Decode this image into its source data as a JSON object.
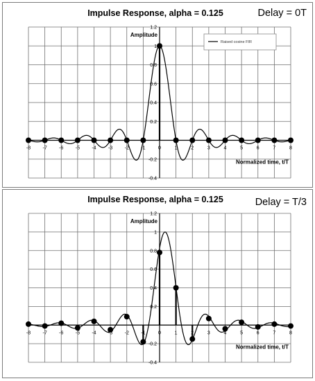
{
  "chart_data": [
    {
      "type": "line",
      "title": "Impulse Response, alpha = 0.125",
      "annotation": "Delay = 0T",
      "xlabel": "Normalized time, t/T",
      "ylabel": "Amplitude",
      "xlim": [
        -8,
        8
      ],
      "ylim": [
        -0.4,
        1.2
      ],
      "x_ticks": [
        -8,
        -7,
        -6,
        -5,
        -4,
        -3,
        -2,
        -1,
        0,
        1,
        2,
        3,
        4,
        5,
        6,
        7,
        8
      ],
      "y_ticks": [
        -0.4,
        -0.2,
        0,
        0.2,
        0.4,
        0.6,
        0.8,
        1,
        1.2
      ],
      "grid": true,
      "legend": {
        "position": "top-right",
        "entries": [
          "Raised cosine FIR"
        ]
      },
      "alpha": 0.125,
      "delay": 0,
      "series": [
        {
          "name": "Raised cosine FIR",
          "kind": "continuous-curve",
          "x_range": [
            -8,
            8
          ]
        }
      ],
      "samples": {
        "x": [
          -8,
          -7,
          -6,
          -5,
          -4,
          -3,
          -2,
          -1,
          0,
          1,
          2,
          3,
          4,
          5,
          6,
          7,
          8
        ],
        "y": [
          0,
          0,
          0,
          0,
          0,
          0,
          0,
          0,
          1,
          0,
          0,
          0,
          0,
          0,
          0,
          0,
          0
        ]
      },
      "stems": [
        0
      ]
    },
    {
      "type": "line",
      "title": "Impulse Response, alpha = 0.125",
      "annotation": "Delay = T/3",
      "xlabel": "Normalized time, t/T",
      "ylabel": "Amplitude",
      "xlim": [
        -8,
        8
      ],
      "ylim": [
        -0.4,
        1.2
      ],
      "x_ticks": [
        -8,
        -7,
        -6,
        -5,
        -4,
        -3,
        -2,
        -1,
        0,
        1,
        2,
        3,
        4,
        5,
        6,
        7,
        8
      ],
      "y_ticks": [
        -0.4,
        -0.2,
        0,
        0.2,
        0.4,
        0.6,
        0.8,
        1,
        1.2
      ],
      "grid": true,
      "alpha": 0.125,
      "delay": 0.3333,
      "series": [
        {
          "kind": "continuous-curve",
          "x_range": [
            -8,
            8
          ]
        }
      ],
      "samples": {
        "x": [
          -8,
          -7,
          -6,
          -5,
          -4,
          -3,
          -2,
          -1,
          0,
          1,
          2,
          3,
          4,
          5,
          6,
          7,
          8
        ],
        "y": [
          0.01,
          -0.01,
          0.02,
          -0.03,
          0.04,
          -0.05,
          0.09,
          -0.18,
          0.78,
          0.4,
          -0.15,
          0.07,
          -0.04,
          0.03,
          -0.02,
          0.01,
          -0.01
        ]
      },
      "stems": [
        -1,
        0,
        1,
        2
      ]
    }
  ]
}
